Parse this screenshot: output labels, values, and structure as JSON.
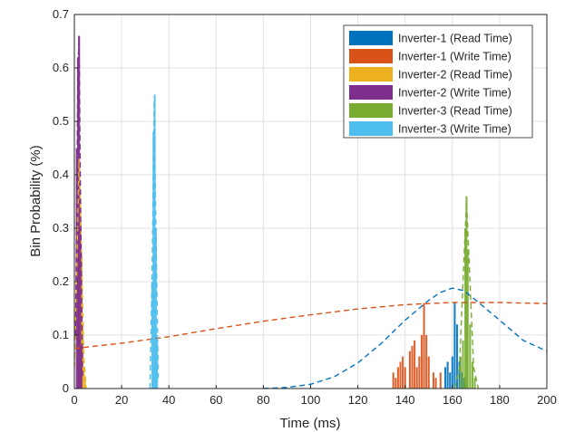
{
  "chart_data": {
    "type": "histogram",
    "xlabel": "Time (ms)",
    "ylabel": "Bin Probability (%)",
    "xlim": [
      0,
      200
    ],
    "ylim": [
      0,
      0.7
    ],
    "xticks": [
      0,
      20,
      40,
      60,
      80,
      100,
      120,
      140,
      160,
      180,
      200
    ],
    "yticks": [
      0,
      0.1,
      0.2,
      0.3,
      0.4,
      0.5,
      0.6,
      0.7
    ],
    "xtick_labels": [
      "0",
      "20",
      "40",
      "60",
      "80",
      "100",
      "120",
      "140",
      "160",
      "180",
      "200"
    ],
    "ytick_labels": [
      "0",
      "0.1",
      "0.2",
      "0.3",
      "0.4",
      "0.5",
      "0.6",
      "0.7"
    ],
    "grid": true,
    "legend_position": "top-right",
    "bar_width": 0.8,
    "series": [
      {
        "name": "Inverter-1 (Read Time)",
        "color": "#0072BD",
        "bars": [
          [
            157,
            0.04
          ],
          [
            158,
            0.05
          ],
          [
            159,
            0.03
          ],
          [
            160,
            0.06
          ],
          [
            161,
            0.16
          ],
          [
            162,
            0.12
          ],
          [
            163,
            0.05
          ],
          [
            164,
            0.03
          ],
          [
            165,
            0.02
          ]
        ],
        "fit": [
          [
            80,
            0.0
          ],
          [
            90,
            0.002
          ],
          [
            100,
            0.008
          ],
          [
            110,
            0.022
          ],
          [
            120,
            0.048
          ],
          [
            130,
            0.085
          ],
          [
            140,
            0.128
          ],
          [
            150,
            0.165
          ],
          [
            155,
            0.18
          ],
          [
            160,
            0.188
          ],
          [
            165,
            0.183
          ],
          [
            170,
            0.165
          ],
          [
            180,
            0.128
          ],
          [
            190,
            0.09
          ],
          [
            200,
            0.07
          ]
        ]
      },
      {
        "name": "Inverter-1 (Write Time)",
        "color": "#D95319",
        "bars": [
          [
            135,
            0.03
          ],
          [
            136,
            0.02
          ],
          [
            137,
            0.04
          ],
          [
            138,
            0.05
          ],
          [
            139,
            0.06
          ],
          [
            140,
            0.04
          ],
          [
            142,
            0.07
          ],
          [
            143,
            0.08
          ],
          [
            144,
            0.09
          ],
          [
            145,
            0.04
          ],
          [
            146,
            0.06
          ],
          [
            147,
            0.1
          ],
          [
            148,
            0.16
          ],
          [
            149,
            0.1
          ],
          [
            150,
            0.06
          ],
          [
            152,
            0.03
          ],
          [
            153,
            0.02
          ],
          [
            155,
            0.03
          ]
        ],
        "fit": [
          [
            0,
            0.075
          ],
          [
            20,
            0.085
          ],
          [
            40,
            0.097
          ],
          [
            60,
            0.112
          ],
          [
            80,
            0.126
          ],
          [
            100,
            0.138
          ],
          [
            120,
            0.149
          ],
          [
            140,
            0.157
          ],
          [
            160,
            0.161
          ],
          [
            180,
            0.161
          ],
          [
            200,
            0.159
          ]
        ]
      },
      {
        "name": "Inverter-2 (Read Time)",
        "color": "#EDB120",
        "bars": [
          [
            1.5,
            0.2
          ],
          [
            2,
            0.42
          ],
          [
            2.5,
            0.35
          ],
          [
            3,
            0.25
          ],
          [
            3.5,
            0.12
          ],
          [
            4,
            0.04
          ],
          [
            4.5,
            0.02
          ]
        ],
        "fit": [
          [
            0,
            0.04
          ],
          [
            1,
            0.22
          ],
          [
            2,
            0.43
          ],
          [
            3,
            0.26
          ],
          [
            4,
            0.06
          ],
          [
            5,
            0.0
          ]
        ]
      },
      {
        "name": "Inverter-2 (Write Time)",
        "color": "#7E2F8E",
        "bars": [
          [
            1,
            0.45
          ],
          [
            1.5,
            0.62
          ],
          [
            2,
            0.66
          ],
          [
            2.5,
            0.3
          ],
          [
            3,
            0.08
          ]
        ],
        "fit": [
          [
            0.5,
            0.1
          ],
          [
            1.5,
            0.6
          ],
          [
            2,
            0.66
          ],
          [
            2.5,
            0.4
          ],
          [
            3.5,
            0.02
          ]
        ]
      },
      {
        "name": "Inverter-3 (Read Time)",
        "color": "#77AC30",
        "bars": [
          [
            163.5,
            0.06
          ],
          [
            164.5,
            0.09
          ],
          [
            165.5,
            0.3
          ],
          [
            166,
            0.36
          ],
          [
            166.5,
            0.26
          ],
          [
            167.5,
            0.12
          ],
          [
            168.5,
            0.05
          ],
          [
            169.5,
            0.02
          ]
        ],
        "fit": [
          [
            161,
            0.0
          ],
          [
            163,
            0.04
          ],
          [
            165,
            0.25
          ],
          [
            166,
            0.35
          ],
          [
            167,
            0.25
          ],
          [
            169,
            0.04
          ],
          [
            171,
            0.0
          ]
        ]
      },
      {
        "name": "Inverter-3 (Write Time)",
        "color": "#4DBEEE",
        "bars": [
          [
            33,
            0.2
          ],
          [
            33.5,
            0.48
          ],
          [
            34,
            0.55
          ],
          [
            34.5,
            0.3
          ],
          [
            35,
            0.1
          ]
        ],
        "fit": [
          [
            32,
            0.0
          ],
          [
            33,
            0.25
          ],
          [
            33.8,
            0.54
          ],
          [
            34.5,
            0.3
          ],
          [
            35.5,
            0.02
          ]
        ]
      }
    ]
  }
}
